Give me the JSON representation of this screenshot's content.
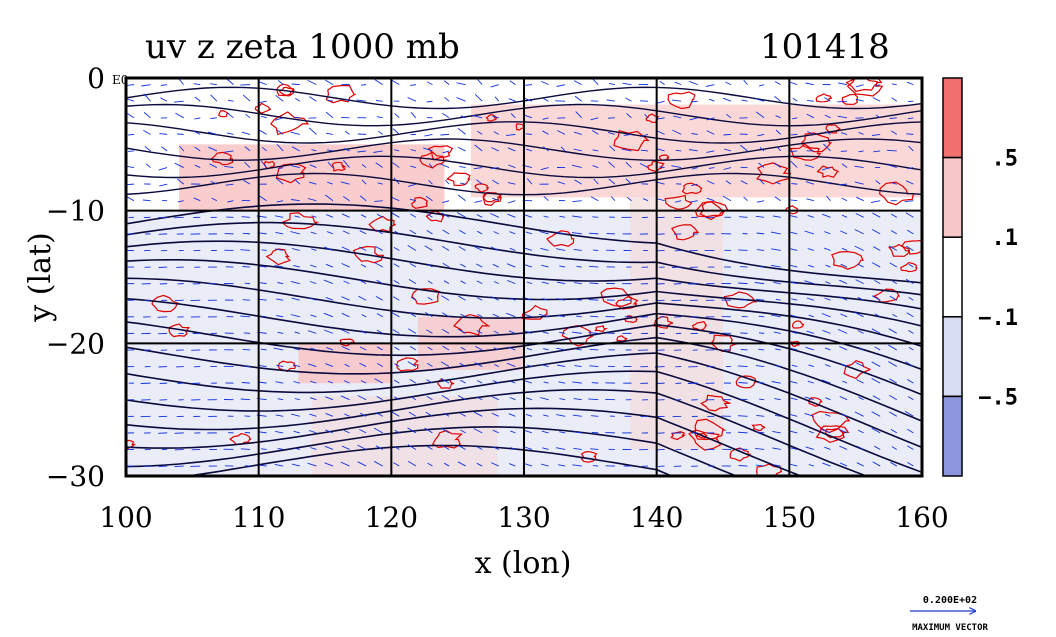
{
  "chart_data": {
    "type": "heatmap",
    "title": "uv z zeta 1000 mb",
    "timestamp": "101418",
    "xlabel": "x (lon)",
    "ylabel": "y (lat)",
    "xlim": [
      100,
      160
    ],
    "ylim": [
      -30,
      0
    ],
    "x_ticks": [
      "100",
      "110",
      "120",
      "130",
      "140",
      "150",
      "160"
    ],
    "y_ticks": [
      "0",
      "−10",
      "−20",
      "−30"
    ],
    "corner_label": "E0",
    "grid": true,
    "colorbar": {
      "position": "right",
      "tick_labels": [
        ".5",
        ".1",
        "−.1",
        "−.5"
      ],
      "levels": [
        0.5,
        0.1,
        -0.1,
        -0.5
      ],
      "colors": [
        "#f07070",
        "#f8c8c8",
        "#ffffff",
        "#d8dcf2",
        "#8c96dc"
      ]
    },
    "contour_colors": {
      "geopotential": "#0a0a3c",
      "zeta_positive": "#e00000",
      "vectors": "#1030e0"
    },
    "vector_legend": {
      "value_label": "0.200E+02",
      "caption": "MAXIMUM VECTOR"
    }
  }
}
